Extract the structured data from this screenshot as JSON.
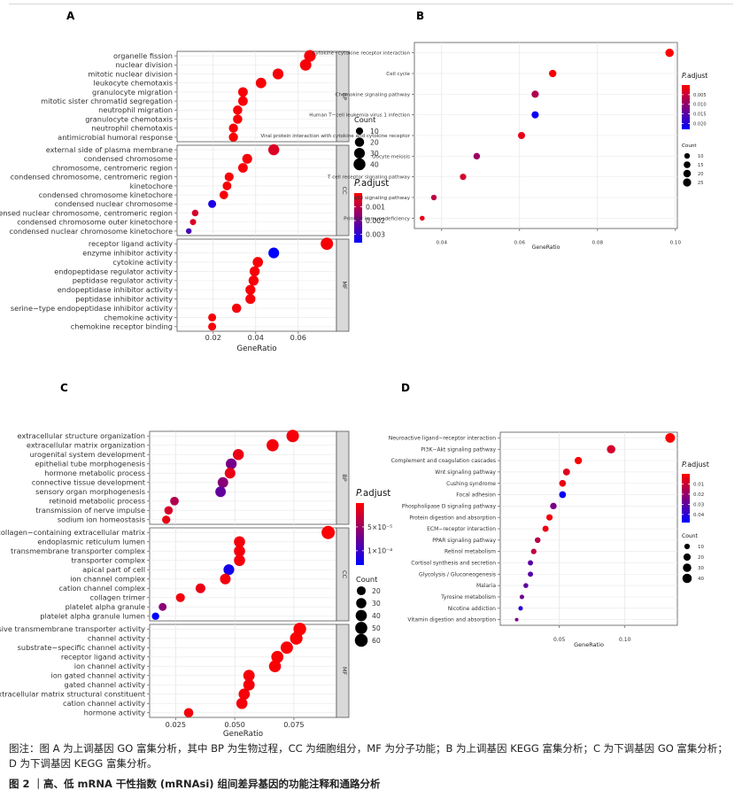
{
  "caption": {
    "note": "图注：图 A 为上调基因 GO 富集分析，其中 BP 为生物过程，CC 为细胞组分，MF 为分子功能；B 为上调基因 KEGG 富集分析；C 为下调基因 GO 富集分析；D 为下调基因 KEGG 富集分析。",
    "figure": "图 2 ｜高、低 mRNA 干性指数 (mRNAsi) 组间差异基因的功能注释和通路分析"
  },
  "colors": {
    "high": "#ff0000",
    "low": "#0000ff"
  },
  "chart_data": [
    {
      "panel": "A",
      "type": "scatter",
      "xlabel": "GeneRatio",
      "xlim": [
        0.003,
        0.078
      ],
      "xticks": [
        0.02,
        0.04,
        0.06
      ],
      "xtick_labels": [
        "0.02",
        "0.04",
        "0.06"
      ],
      "size_legend": {
        "title": "Count",
        "values": [
          10,
          20,
          30,
          40
        ],
        "labels": [
          "10",
          "20",
          "30",
          "40"
        ],
        "range": [
          5,
          45
        ]
      },
      "color_legend": {
        "title": "P.adjust",
        "ticks": [
          0.001,
          0.002,
          0.003
        ],
        "labels": [
          "0.001",
          "0.002",
          "0.003"
        ],
        "range": [
          0.0,
          0.0036
        ]
      },
      "facets": [
        {
          "name": "BP",
          "terms": [
            {
              "label": "organelle fission",
              "x": 0.0655,
              "count": 38,
              "p": 0.0001
            },
            {
              "label": "nuclear division",
              "x": 0.0635,
              "count": 36,
              "p": 0.0001
            },
            {
              "label": "mitotic nuclear division",
              "x": 0.0505,
              "count": 31,
              "p": 0.0001
            },
            {
              "label": "leukocyte chemotaxis",
              "x": 0.0425,
              "count": 28,
              "p": 0.0001
            },
            {
              "label": "granulocyte migration",
              "x": 0.034,
              "count": 22,
              "p": 0.0001
            },
            {
              "label": "mitotic sister chromatid segregation",
              "x": 0.034,
              "count": 22,
              "p": 0.0001
            },
            {
              "label": "neutrophil migration",
              "x": 0.0315,
              "count": 20,
              "p": 0.0001
            },
            {
              "label": "granulocyte chemotaxis",
              "x": 0.0315,
              "count": 20,
              "p": 0.0001
            },
            {
              "label": "neutrophil chemotaxis",
              "x": 0.0295,
              "count": 19,
              "p": 0.0001
            },
            {
              "label": "antimicrobial humoral response",
              "x": 0.0295,
              "count": 19,
              "p": 0.0001
            }
          ]
        },
        {
          "name": "CC",
          "terms": [
            {
              "label": "external side of plasma membrane",
              "x": 0.0485,
              "count": 32,
              "p": 0.0005
            },
            {
              "label": "condensed chromosome",
              "x": 0.036,
              "count": 24,
              "p": 0.0001
            },
            {
              "label": "chromosome, centromeric region",
              "x": 0.034,
              "count": 22,
              "p": 0.0001
            },
            {
              "label": "condensed chromosome, centromeric region",
              "x": 0.0275,
              "count": 18,
              "p": 0.0001
            },
            {
              "label": "kinetochore",
              "x": 0.0265,
              "count": 17,
              "p": 0.0001
            },
            {
              "label": "condensed chromosome kinetochore",
              "x": 0.025,
              "count": 16,
              "p": 0.0001
            },
            {
              "label": "condensed nuclear chromosome",
              "x": 0.0195,
              "count": 13,
              "p": 0.0032
            },
            {
              "label": "condensed nuclear chromosome, centromeric region",
              "x": 0.0115,
              "count": 8,
              "p": 0.0006
            },
            {
              "label": "condensed chromosome outer kinetochore",
              "x": 0.0105,
              "count": 7,
              "p": 0.0005
            },
            {
              "label": "condensed nuclear chromosome kinetochore",
              "x": 0.0085,
              "count": 6,
              "p": 0.0026
            }
          ]
        },
        {
          "name": "MF",
          "terms": [
            {
              "label": "receptor ligand activity",
              "x": 0.0735,
              "count": 45,
              "p": 0.0001
            },
            {
              "label": "enzyme inhibitor activity",
              "x": 0.0485,
              "count": 30,
              "p": 0.0036
            },
            {
              "label": "cytokine activity",
              "x": 0.041,
              "count": 27,
              "p": 0.0001
            },
            {
              "label": "endopeptidase regulator activity",
              "x": 0.0395,
              "count": 25,
              "p": 0.0001
            },
            {
              "label": "peptidase regulator activity",
              "x": 0.039,
              "count": 25,
              "p": 0.0001
            },
            {
              "label": "endopeptidase inhibitor activity",
              "x": 0.0375,
              "count": 24,
              "p": 0.0001
            },
            {
              "label": "peptidase inhibitor activity",
              "x": 0.0375,
              "count": 24,
              "p": 0.0001
            },
            {
              "label": "serine−type endopeptidase inhibitor activity",
              "x": 0.031,
              "count": 20,
              "p": 0.0001
            },
            {
              "label": "chemokine activity",
              "x": 0.0195,
              "count": 13,
              "p": 0.0001
            },
            {
              "label": "chemokine receptor binding",
              "x": 0.0195,
              "count": 13,
              "p": 0.0001
            }
          ]
        }
      ]
    },
    {
      "panel": "B",
      "type": "scatter",
      "xlabel": "GeneRatio",
      "xlim": [
        0.033,
        0.1005
      ],
      "xticks": [
        0.04,
        0.06,
        0.08,
        0.1
      ],
      "xtick_labels": [
        "0.04",
        "0.06",
        "0.08",
        "0.10"
      ],
      "size_legend": {
        "title": "Count",
        "values": [
          10,
          15,
          20,
          25
        ],
        "labels": [
          "10",
          "15",
          "20",
          "25"
        ],
        "range": [
          7,
          28
        ]
      },
      "color_legend": {
        "title": "P.adjust",
        "ticks": [
          0.005,
          0.01,
          0.015,
          0.02
        ],
        "labels": [
          "0.005",
          "0.010",
          "0.015",
          "0.020"
        ],
        "range": [
          0.0,
          0.023
        ]
      },
      "terms": [
        {
          "label": "Cytokine−cytokine receptor interaction",
          "x": 0.0985,
          "count": 27,
          "p": 0.0002
        },
        {
          "label": "Cell cycle",
          "x": 0.0685,
          "count": 19,
          "p": 0.0005
        },
        {
          "label": "Chemokine signaling pathway",
          "x": 0.064,
          "count": 18,
          "p": 0.007
        },
        {
          "label": "Human T−cell leukemia virus 1 infection",
          "x": 0.064,
          "count": 18,
          "p": 0.022
        },
        {
          "label": "Viral protein interaction with cytokine and cytokine receptor",
          "x": 0.0605,
          "count": 17,
          "p": 0.002
        },
        {
          "label": "Oocyte meiosis",
          "x": 0.049,
          "count": 14,
          "p": 0.009
        },
        {
          "label": "T cell receptor signaling pathway",
          "x": 0.0455,
          "count": 13,
          "p": 0.004
        },
        {
          "label": "p53 signaling pathway",
          "x": 0.038,
          "count": 10,
          "p": 0.006
        },
        {
          "label": "Primary immunodeficiency",
          "x": 0.035,
          "count": 8,
          "p": 0.002
        }
      ]
    },
    {
      "panel": "C",
      "type": "scatter",
      "xlabel": "GeneRatio",
      "xlim": [
        0.014,
        0.093
      ],
      "xticks": [
        0.025,
        0.05,
        0.075
      ],
      "xtick_labels": [
        "0.025",
        "0.050",
        "0.075"
      ],
      "size_legend": {
        "title": "Count",
        "values": [
          20,
          30,
          40,
          50,
          60
        ],
        "labels": [
          "20",
          "30",
          "40",
          "50",
          "60"
        ],
        "range": [
          8,
          66
        ]
      },
      "color_legend": {
        "title": "P.adjust",
        "ticks": [
          5e-05,
          0.0001
        ],
        "labels": [
          "5×10⁻⁵",
          "1×10⁻⁴"
        ],
        "range": [
          0.0,
          0.00013
        ]
      },
      "facets": [
        {
          "name": "BP",
          "terms": [
            {
              "label": "extracellular structure organization",
              "x": 0.0745,
              "count": 55,
              "p": 5e-06
            },
            {
              "label": "extracellular matrix organization",
              "x": 0.066,
              "count": 50,
              "p": 5e-06
            },
            {
              "label": "urogenital system development",
              "x": 0.0515,
              "count": 38,
              "p": 1e-05
            },
            {
              "label": "epithelial tube morphogenesis",
              "x": 0.0485,
              "count": 36,
              "p": 7e-05
            },
            {
              "label": "hormone metabolic process",
              "x": 0.048,
              "count": 35,
              "p": 1e-05
            },
            {
              "label": "connective tissue development",
              "x": 0.045,
              "count": 33,
              "p": 6e-05
            },
            {
              "label": "sensory organ morphogenesis",
              "x": 0.044,
              "count": 33,
              "p": 8e-05
            },
            {
              "label": "retinoid metabolic process",
              "x": 0.0245,
              "count": 18,
              "p": 4e-05
            },
            {
              "label": "transmission of nerve impulse",
              "x": 0.022,
              "count": 17,
              "p": 2e-05
            },
            {
              "label": "sodium ion homeostasis",
              "x": 0.021,
              "count": 16,
              "p": 1e-05
            }
          ]
        },
        {
          "name": "CC",
          "terms": [
            {
              "label": "collagen−containing extracellular matrix",
              "x": 0.0895,
              "count": 66,
              "p": 2e-06
            },
            {
              "label": "endoplasmic reticulum lumen",
              "x": 0.052,
              "count": 39,
              "p": 5e-06
            },
            {
              "label": "transmembrane transporter complex",
              "x": 0.052,
              "count": 39,
              "p": 5e-06
            },
            {
              "label": "transporter complex",
              "x": 0.052,
              "count": 39,
              "p": 5e-06
            },
            {
              "label": "apical part of cell",
              "x": 0.0475,
              "count": 35,
              "p": 0.00012
            },
            {
              "label": "ion channel complex",
              "x": 0.046,
              "count": 34,
              "p": 5e-06
            },
            {
              "label": "cation channel complex",
              "x": 0.0355,
              "count": 26,
              "p": 1e-05
            },
            {
              "label": "collagen trimer",
              "x": 0.027,
              "count": 20,
              "p": 5e-06
            },
            {
              "label": "platelet alpha granule",
              "x": 0.0195,
              "count": 14,
              "p": 6e-05
            },
            {
              "label": "platelet alpha granule lumen",
              "x": 0.0165,
              "count": 12,
              "p": 0.00013
            }
          ]
        },
        {
          "name": "MF",
          "terms": [
            {
              "label": "passive transmembrane transporter activity",
              "x": 0.0775,
              "count": 58,
              "p": 2e-06
            },
            {
              "label": "channel activity",
              "x": 0.076,
              "count": 56,
              "p": 2e-06
            },
            {
              "label": "substrate−specific channel activity",
              "x": 0.072,
              "count": 53,
              "p": 2e-06
            },
            {
              "label": "receptor ligand activity",
              "x": 0.068,
              "count": 50,
              "p": 3e-06
            },
            {
              "label": "ion channel activity",
              "x": 0.067,
              "count": 49,
              "p": 3e-06
            },
            {
              "label": "ion gated channel activity",
              "x": 0.056,
              "count": 42,
              "p": 5e-06
            },
            {
              "label": "gated channel activity",
              "x": 0.056,
              "count": 42,
              "p": 5e-06
            },
            {
              "label": "extracellular matrix structural constituent",
              "x": 0.054,
              "count": 40,
              "p": 5e-06
            },
            {
              "label": "cation channel activity",
              "x": 0.053,
              "count": 39,
              "p": 5e-06
            },
            {
              "label": "hormone activity",
              "x": 0.0305,
              "count": 23,
              "p": 5e-06
            }
          ]
        }
      ]
    },
    {
      "panel": "D",
      "type": "scatter",
      "xlabel": "GeneRatio",
      "xlim": [
        0.005,
        0.14
      ],
      "xticks": [
        0.05,
        0.1
      ],
      "xtick_labels": [
        "0.05",
        "0.10"
      ],
      "size_legend": {
        "title": "Count",
        "values": [
          10,
          20,
          30,
          40
        ],
        "labels": [
          "10",
          "20",
          "30",
          "40"
        ],
        "range": [
          6,
          45
        ]
      },
      "color_legend": {
        "title": "P.adjust",
        "ticks": [
          0.01,
          0.02,
          0.03,
          0.04
        ],
        "labels": [
          "0.01",
          "0.02",
          "0.03",
          "0.04"
        ],
        "range": [
          0.0,
          0.048
        ]
      },
      "terms": [
        {
          "label": "Neuroactive ligand−receptor interaction",
          "x": 0.1345,
          "count": 44,
          "p": 0.0002
        },
        {
          "label": "PI3K−Akt signaling pathway",
          "x": 0.0895,
          "count": 30,
          "p": 0.008
        },
        {
          "label": "Complement and coagulation cascades",
          "x": 0.0645,
          "count": 21,
          "p": 0.0003
        },
        {
          "label": "Wnt signaling pathway",
          "x": 0.0555,
          "count": 18,
          "p": 0.006
        },
        {
          "label": "Cushing syndrome",
          "x": 0.0525,
          "count": 17,
          "p": 0.004
        },
        {
          "label": "Focal adhesion",
          "x": 0.0525,
          "count": 17,
          "p": 0.047
        },
        {
          "label": "Phospholipase D signaling pathway",
          "x": 0.0455,
          "count": 15,
          "p": 0.025
        },
        {
          "label": "Protein digestion and absorption",
          "x": 0.0425,
          "count": 14,
          "p": 0.002
        },
        {
          "label": "ECM−receptor interaction",
          "x": 0.0395,
          "count": 13,
          "p": 0.003
        },
        {
          "label": "PPAR signaling pathway",
          "x": 0.0335,
          "count": 11,
          "p": 0.014
        },
        {
          "label": "Retinol metabolism",
          "x": 0.0305,
          "count": 10,
          "p": 0.012
        },
        {
          "label": "Cortisol synthesis and secretion",
          "x": 0.028,
          "count": 9,
          "p": 0.031
        },
        {
          "label": "Glycolysis / Gluconeogenesis",
          "x": 0.028,
          "count": 9,
          "p": 0.032
        },
        {
          "label": "Malaria",
          "x": 0.0245,
          "count": 8,
          "p": 0.03
        },
        {
          "label": "Tyrosine metabolism",
          "x": 0.0215,
          "count": 7,
          "p": 0.027
        },
        {
          "label": "Nicotine addiction",
          "x": 0.0205,
          "count": 7,
          "p": 0.041
        },
        {
          "label": "Vitamin digestion and absorption",
          "x": 0.0175,
          "count": 6,
          "p": 0.025
        }
      ]
    }
  ]
}
